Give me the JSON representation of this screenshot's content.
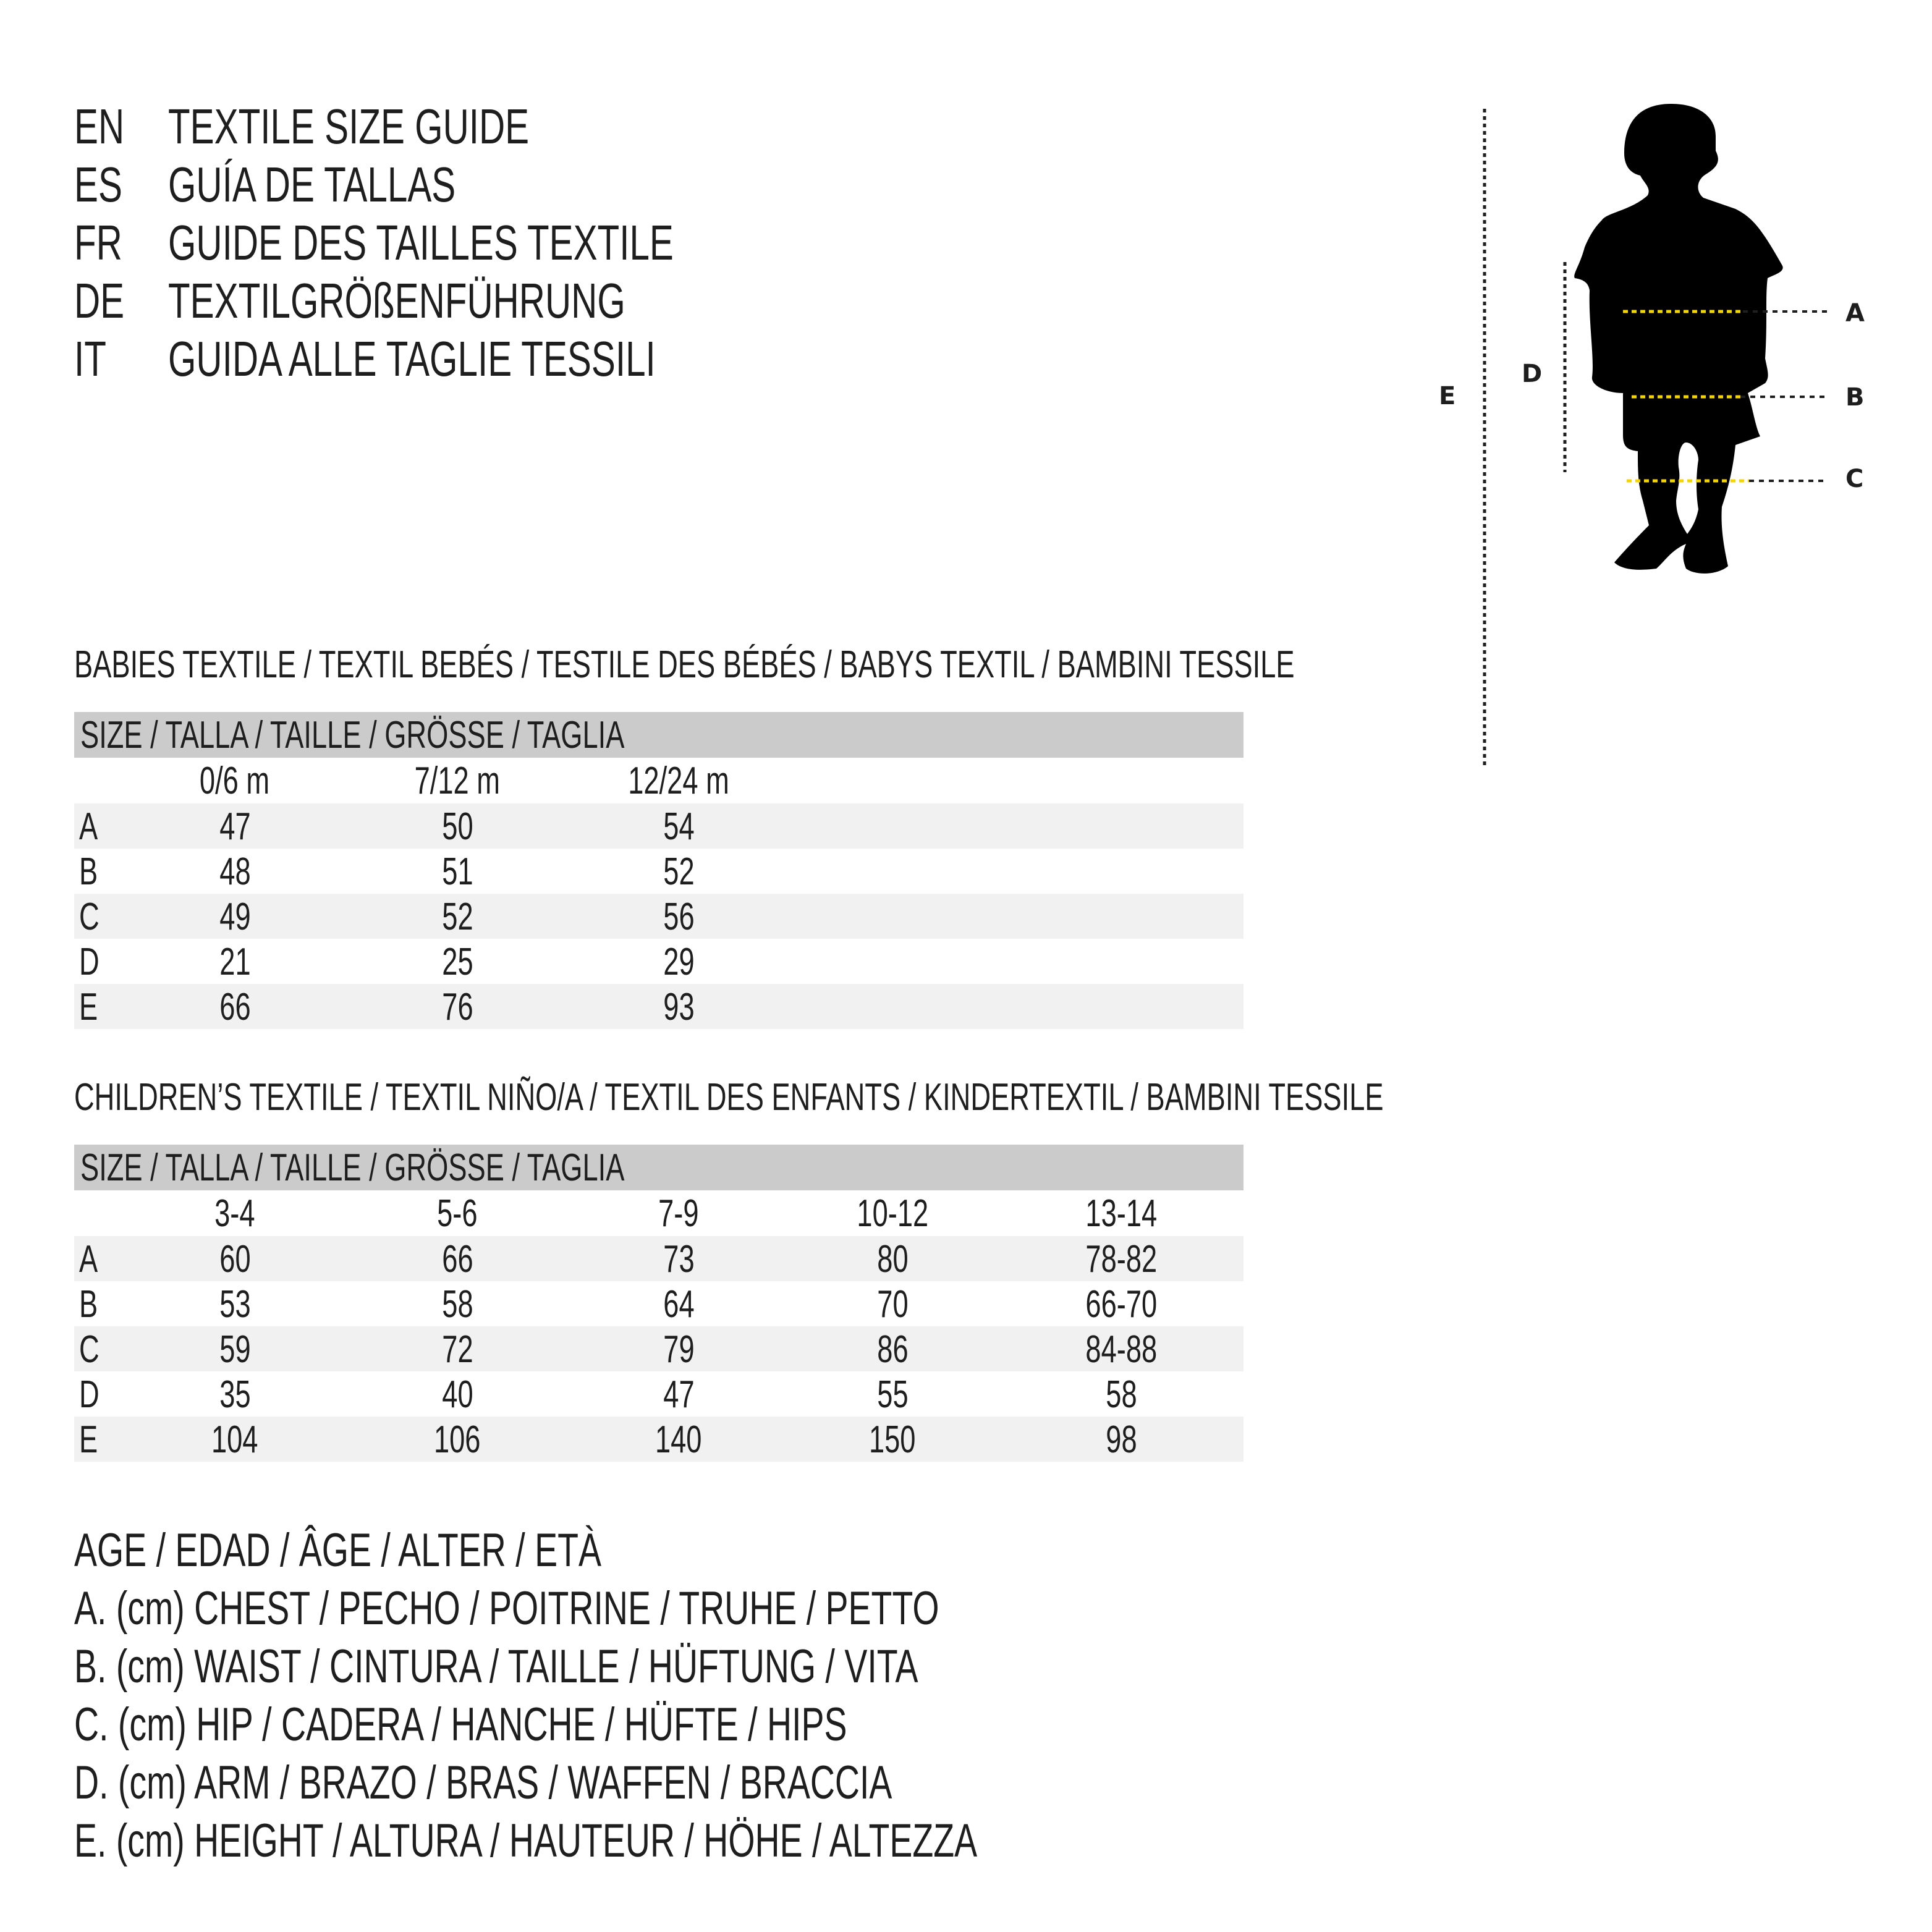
{
  "title_lines": [
    {
      "code": "EN",
      "text": "TEXTILE SIZE GUIDE"
    },
    {
      "code": "ES",
      "text": "GUÍA DE TALLAS"
    },
    {
      "code": "FR",
      "text": "GUIDE DES TAILLES TEXTILE"
    },
    {
      "code": "DE",
      "text": "TEXTILGRÖßENFÜHRUNG"
    },
    {
      "code": "IT",
      "text": "GUIDA ALLE TAGLIE TESSILI"
    }
  ],
  "figure": {
    "labels": {
      "A": "A",
      "B": "B",
      "C": "C",
      "D": "D",
      "E": "E"
    },
    "colors": {
      "silhouette": "#000000",
      "measure_line": "#f2d600",
      "guide_line": "#1e1e1e"
    }
  },
  "babies": {
    "heading": "BABIES TEXTILE / TEXTIL BEBÉS / TESTILE DES BÉBÉS / BABYS TEXTIL / BAMBINI TESSILE",
    "size_header": "SIZE / TALLA / TAILLE / GRÖSSE / TAGLIA",
    "columns": [
      "0/6 m",
      "7/12 m",
      "12/24 m"
    ],
    "rows": [
      {
        "label": "A",
        "values": [
          "47",
          "50",
          "54"
        ]
      },
      {
        "label": "B",
        "values": [
          "48",
          "51",
          "52"
        ]
      },
      {
        "label": "C",
        "values": [
          "49",
          "52",
          "56"
        ]
      },
      {
        "label": "D",
        "values": [
          "21",
          "25",
          "29"
        ]
      },
      {
        "label": "E",
        "values": [
          "66",
          "76",
          "93"
        ]
      }
    ]
  },
  "children": {
    "heading": "CHILDREN’S TEXTILE / TEXTIL NIÑO/A / TEXTIL DES ENFANTS / KINDERTEXTIL / BAMBINI TESSILE",
    "size_header": "SIZE / TALLA / TAILLE / GRÖSSE / TAGLIA",
    "columns": [
      "3-4",
      "5-6",
      "7-9",
      "10-12",
      "13-14"
    ],
    "rows": [
      {
        "label": "A",
        "values": [
          "60",
          "66",
          "73",
          "80",
          "78-82"
        ]
      },
      {
        "label": "B",
        "values": [
          "53",
          "58",
          "64",
          "70",
          "66-70"
        ]
      },
      {
        "label": "C",
        "values": [
          "59",
          "72",
          "79",
          "86",
          "84-88"
        ]
      },
      {
        "label": "D",
        "values": [
          "35",
          "40",
          "47",
          "55",
          "58"
        ]
      },
      {
        "label": "E",
        "values": [
          "104",
          "106",
          "140",
          "150",
          "98"
        ]
      }
    ]
  },
  "legend": [
    "AGE / EDAD / ÂGE / ALTER / ETÀ",
    "A. (cm) CHEST / PECHO / POITRINE / TRUHE / PETTO",
    "B. (cm) WAIST / CINTURA / TAILLE / HÜFTUNG / VITA",
    "C. (cm) HIP / CADERA / HANCHE / HÜFTE / HIPS",
    "D. (cm) ARM / BRAZO / BRAS / WAFFEN / BRACCIA",
    "E. (cm) HEIGHT / ALTURA / HAUTEUR / HÖHE / ALTEZZA"
  ]
}
